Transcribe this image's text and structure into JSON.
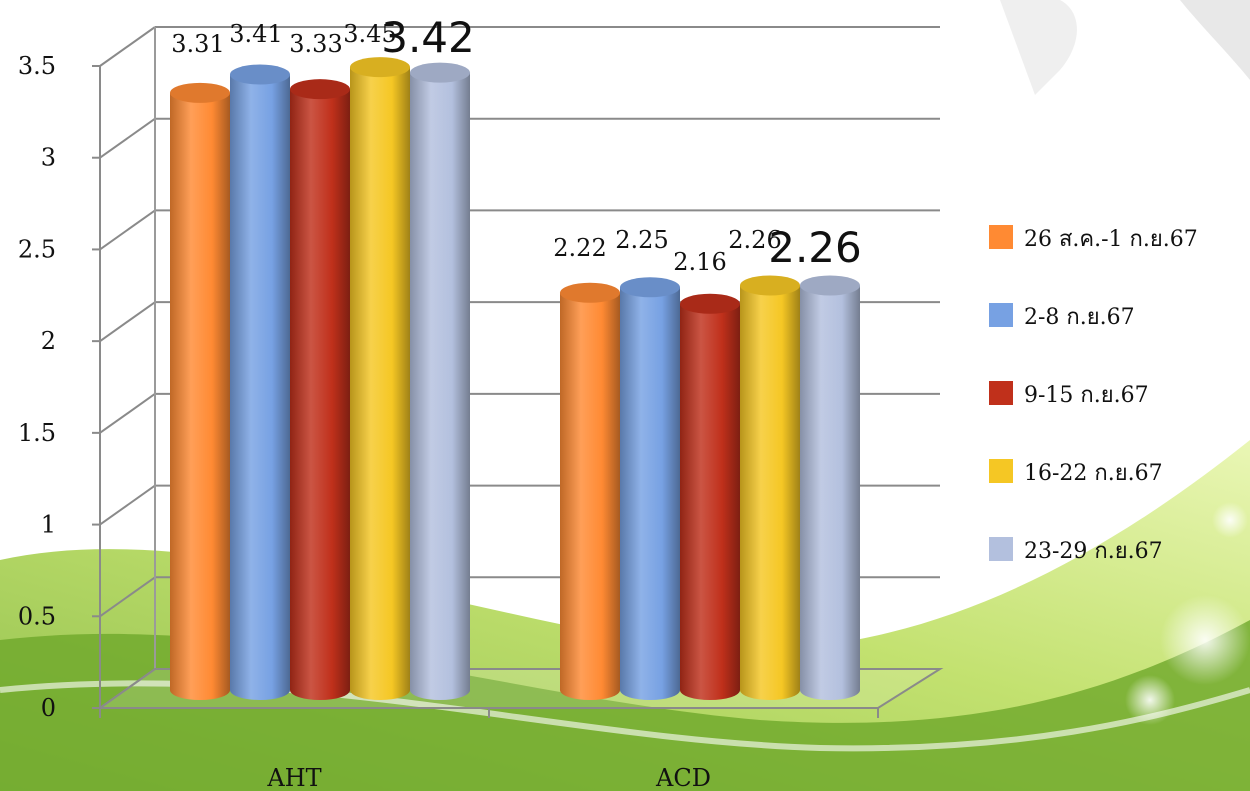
{
  "chart_data": {
    "type": "bar",
    "style": "3d-cylinder",
    "title": "",
    "xlabel": "",
    "ylabel": "",
    "categories": [
      "AHT",
      "ACD"
    ],
    "series": [
      {
        "name": "26 ส.ค.-1 ก.ย.67",
        "color": "#ff8a33",
        "values": [
          3.31,
          2.22
        ]
      },
      {
        "name": "2-8 ก.ย.67",
        "color": "#77a1e3",
        "values": [
          3.41,
          2.25
        ]
      },
      {
        "name": "9-15 ก.ย.67",
        "color": "#c0301b",
        "values": [
          3.33,
          2.16
        ]
      },
      {
        "name": "16-22 ก.ย.67",
        "color": "#f5c724",
        "values": [
          3.45,
          2.26
        ]
      },
      {
        "name": "23-29 ก.ย.67",
        "color": "#b3c0de",
        "values": [
          3.42,
          2.26
        ]
      }
    ],
    "value_labels": [
      [
        "3.31",
        "2.22"
      ],
      [
        "3.41",
        "2.25"
      ],
      [
        "3.33",
        "2.16"
      ],
      [
        "3.45",
        "2.26"
      ],
      [
        "3.42",
        "2.26"
      ]
    ],
    "ylim": [
      0,
      3.5
    ],
    "y_ticks": [
      "0",
      "0.5",
      "1",
      "1.5",
      "2",
      "2.5",
      "3",
      "3.5"
    ],
    "grid": true,
    "legend_position": "right"
  }
}
